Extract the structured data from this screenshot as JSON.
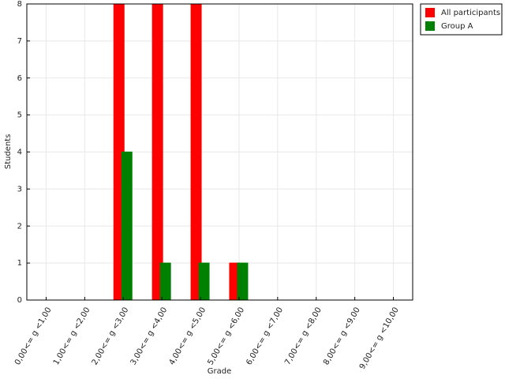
{
  "chart_data": {
    "type": "bar",
    "x_label": "Grade",
    "y_label": "Students",
    "categories": [
      "0,00<= g <1,00",
      "1,00<= g <2,00",
      "2,00<= g <3,00",
      "3,00<= g <4,00",
      "4,00<= g <5,00",
      "5,00<= g <6,00",
      "6,00<= g <7,00",
      "7,00<= g <8,00",
      "8,00<= g <9,00",
      "9,00<= g <10,00"
    ],
    "series": [
      {
        "name": "All participants",
        "color": "#ff0000",
        "values": [
          0,
          0,
          8,
          8,
          8,
          1,
          0,
          0,
          0,
          0
        ]
      },
      {
        "name": "Group A",
        "color": "#008000",
        "values": [
          0,
          0,
          4,
          1,
          1,
          1,
          0,
          0,
          0,
          0
        ]
      }
    ],
    "ylim": [
      0,
      8
    ],
    "yticks": [
      0,
      1,
      2,
      3,
      4,
      5,
      6,
      7,
      8
    ],
    "grid": true,
    "legend": "top-right"
  }
}
